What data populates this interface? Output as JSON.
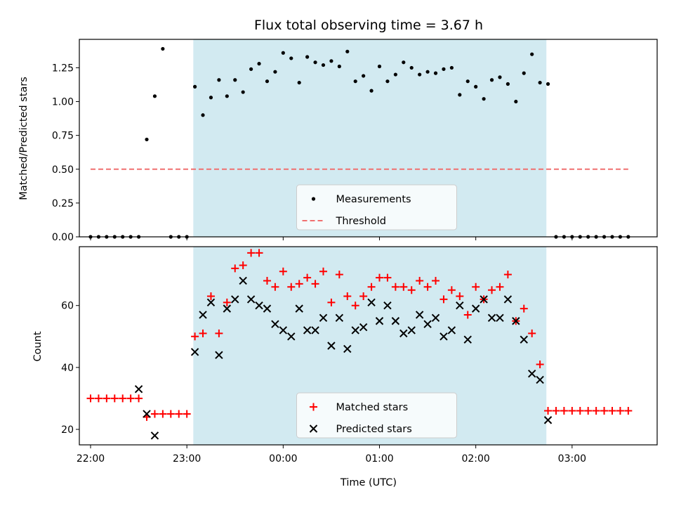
{
  "chart_data": [
    {
      "type": "scatter",
      "title": "Flux total observing time = 3.67 h",
      "ylabel": "Matched/Predicted stars",
      "xlabel": "",
      "xlim": [
        "21:53",
        "03:53"
      ],
      "ylim": [
        0,
        1.46
      ],
      "yticks": [
        "0.00",
        "0.25",
        "0.50",
        "0.75",
        "1.00",
        "1.25"
      ],
      "ytick_values": [
        0,
        0.25,
        0.5,
        0.75,
        1.0,
        1.25
      ],
      "shaded_span": {
        "start": "23:04",
        "end": "02:44",
        "color": "#add8e6"
      },
      "legend_position": "lower center",
      "series": [
        {
          "name": "Measurements",
          "marker": "dot",
          "color": "#000000",
          "x": [
            "22:00",
            "22:05",
            "22:10",
            "22:15",
            "22:20",
            "22:25",
            "22:30",
            "22:35",
            "22:40",
            "22:45",
            "22:50",
            "22:55",
            "23:00",
            "23:05",
            "23:10",
            "23:15",
            "23:20",
            "23:25",
            "23:30",
            "23:35",
            "23:40",
            "23:45",
            "23:50",
            "23:55",
            "00:00",
            "00:05",
            "00:10",
            "00:15",
            "00:20",
            "00:25",
            "00:30",
            "00:35",
            "00:40",
            "00:45",
            "00:50",
            "00:55",
            "01:00",
            "01:05",
            "01:10",
            "01:15",
            "01:20",
            "01:25",
            "01:30",
            "01:35",
            "01:40",
            "01:45",
            "01:50",
            "01:55",
            "02:00",
            "02:05",
            "02:10",
            "02:15",
            "02:20",
            "02:25",
            "02:30",
            "02:35",
            "02:40",
            "02:45",
            "02:50",
            "02:55",
            "03:00",
            "03:05",
            "03:10",
            "03:15",
            "03:20",
            "03:25",
            "03:30",
            "03:35"
          ],
          "y": [
            0,
            0,
            0,
            0,
            0,
            0,
            0,
            0.72,
            1.04,
            1.39,
            0,
            0,
            0,
            1.11,
            0.9,
            1.03,
            1.16,
            1.04,
            1.16,
            1.07,
            1.24,
            1.28,
            1.15,
            1.22,
            1.36,
            1.32,
            1.14,
            1.33,
            1.29,
            1.27,
            1.3,
            1.26,
            1.37,
            1.15,
            1.19,
            1.08,
            1.26,
            1.15,
            1.2,
            1.29,
            1.25,
            1.2,
            1.22,
            1.21,
            1.24,
            1.25,
            1.05,
            1.15,
            1.11,
            1.02,
            1.16,
            1.18,
            1.13,
            1.0,
            1.21,
            1.35,
            1.14,
            1.13,
            0,
            0,
            0,
            0,
            0,
            0,
            0,
            0,
            0,
            0
          ]
        },
        {
          "name": "Threshold",
          "marker": "dashed-line",
          "color": "#f07070",
          "x": [
            "22:00",
            "03:35"
          ],
          "y": [
            0.5,
            0.5
          ]
        }
      ]
    },
    {
      "type": "scatter",
      "title": "",
      "ylabel": "Count",
      "xlabel": "Time (UTC)",
      "xlim": [
        "21:53",
        "03:53"
      ],
      "ylim": [
        15,
        79
      ],
      "yticks": [
        "20",
        "40",
        "60"
      ],
      "ytick_values": [
        20,
        40,
        60
      ],
      "xticks": [
        "22:00",
        "23:00",
        "00:00",
        "01:00",
        "02:00",
        "03:00"
      ],
      "shaded_span": {
        "start": "23:04",
        "end": "02:44",
        "color": "#add8e6"
      },
      "legend_position": "lower center",
      "series": [
        {
          "name": "Matched stars",
          "marker": "plus",
          "color": "#ff0000",
          "x": [
            "22:00",
            "22:05",
            "22:10",
            "22:15",
            "22:20",
            "22:25",
            "22:30",
            "22:35",
            "22:40",
            "22:45",
            "22:50",
            "22:55",
            "23:00",
            "23:05",
            "23:10",
            "23:15",
            "23:20",
            "23:25",
            "23:30",
            "23:35",
            "23:40",
            "23:45",
            "23:50",
            "23:55",
            "00:00",
            "00:05",
            "00:10",
            "00:15",
            "00:20",
            "00:25",
            "00:30",
            "00:35",
            "00:40",
            "00:45",
            "00:50",
            "00:55",
            "01:00",
            "01:05",
            "01:10",
            "01:15",
            "01:20",
            "01:25",
            "01:30",
            "01:35",
            "01:40",
            "01:45",
            "01:50",
            "01:55",
            "02:00",
            "02:05",
            "02:10",
            "02:15",
            "02:20",
            "02:25",
            "02:30",
            "02:35",
            "02:40",
            "02:45",
            "02:50",
            "02:55",
            "03:00",
            "03:05",
            "03:10",
            "03:15",
            "03:20",
            "03:25",
            "03:30",
            "03:35"
          ],
          "y": [
            30,
            30,
            30,
            30,
            30,
            30,
            30,
            24,
            25,
            25,
            25,
            25,
            25,
            50,
            51,
            63,
            51,
            61,
            72,
            73,
            77,
            77,
            68,
            66,
            71,
            66,
            67,
            69,
            67,
            71,
            61,
            70,
            63,
            60,
            63,
            66,
            69,
            69,
            66,
            66,
            65,
            68,
            66,
            68,
            62,
            65,
            63,
            57,
            66,
            62,
            65,
            66,
            70,
            55,
            59,
            51,
            41,
            26,
            26,
            26,
            26,
            26,
            26,
            26,
            26,
            26,
            26,
            26
          ]
        },
        {
          "name": "Predicted stars",
          "marker": "x",
          "color": "#000000",
          "x": [
            "22:30",
            "22:35",
            "22:40",
            "23:05",
            "23:10",
            "23:15",
            "23:20",
            "23:25",
            "23:30",
            "23:35",
            "23:40",
            "23:45",
            "23:50",
            "23:55",
            "00:00",
            "00:05",
            "00:10",
            "00:15",
            "00:20",
            "00:25",
            "00:30",
            "00:35",
            "00:40",
            "00:45",
            "00:50",
            "00:55",
            "01:00",
            "01:05",
            "01:10",
            "01:15",
            "01:20",
            "01:25",
            "01:30",
            "01:35",
            "01:40",
            "01:45",
            "01:50",
            "01:55",
            "02:00",
            "02:05",
            "02:10",
            "02:15",
            "02:20",
            "02:25",
            "02:30",
            "02:35",
            "02:40",
            "02:45"
          ],
          "y": [
            33,
            25,
            18,
            45,
            57,
            61,
            44,
            59,
            62,
            68,
            62,
            60,
            59,
            54,
            52,
            50,
            59,
            52,
            52,
            56,
            47,
            56,
            46,
            52,
            53,
            61,
            55,
            60,
            55,
            51,
            52,
            57,
            54,
            56,
            50,
            52,
            60,
            49,
            59,
            62,
            56,
            56,
            62,
            55,
            49,
            38,
            36,
            23
          ]
        }
      ]
    }
  ]
}
